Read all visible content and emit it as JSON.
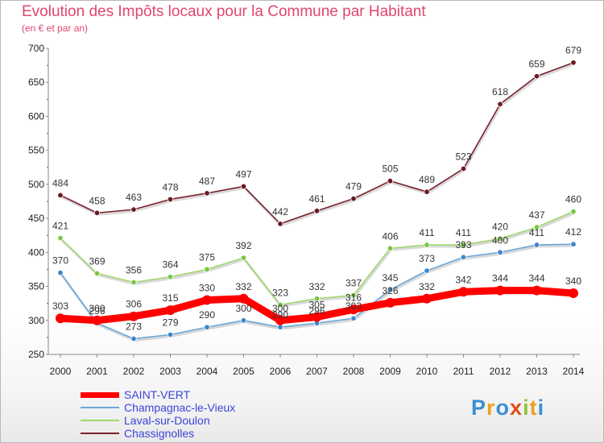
{
  "header": {
    "title": "Evolution des Impôts locaux pour la Commune par Habitant",
    "subtitle": "(en € et par an)"
  },
  "chart_data": {
    "type": "line",
    "title": "Evolution des Impôts locaux pour la Commune par Habitant",
    "subtitle": "(en € et par an)",
    "xlabel": "",
    "ylabel": "",
    "ylim": [
      250,
      700
    ],
    "yticks": [
      "250",
      "300",
      "350",
      "400",
      "450",
      "500",
      "550",
      "600",
      "650",
      "700"
    ],
    "categories": [
      "2000",
      "2001",
      "2002",
      "2003",
      "2004",
      "2005",
      "2006",
      "2007",
      "2008",
      "2009",
      "2010",
      "2011",
      "2012",
      "2013",
      "2014"
    ],
    "grid": false,
    "legend_position": "bottom-left",
    "series": [
      {
        "name": "Chassignolles",
        "color": "#7a1f2b",
        "marker_color": "#6b1a24",
        "values": [
          484,
          458,
          463,
          478,
          487,
          497,
          442,
          461,
          479,
          505,
          489,
          523,
          618,
          659,
          679
        ],
        "labels": [
          "484",
          "458",
          "463",
          "478",
          "487",
          "497",
          "442",
          "461",
          "479",
          "505",
          "489",
          "523",
          "618",
          "659",
          "679"
        ]
      },
      {
        "name": "Laval-sur-Doulon",
        "color": "#9fd86c",
        "marker_color": "#79c741",
        "values": [
          421,
          369,
          356,
          364,
          375,
          392,
          323,
          332,
          337,
          406,
          411,
          411,
          420,
          437,
          460
        ],
        "labels": [
          "421",
          "369",
          "356",
          "364",
          "375",
          "392",
          "323",
          "332",
          "337",
          "406",
          "411",
          "411",
          "420",
          "437",
          "460"
        ]
      },
      {
        "name": "Champagnac-le-Vieux",
        "color": "#6aa6d8",
        "marker_color": "#3e86c6",
        "values": [
          370,
          296,
          273,
          279,
          290,
          300,
          290,
          296,
          303,
          345,
          373,
          393,
          400,
          411,
          412
        ],
        "labels": [
          "370",
          "296",
          "273",
          "279",
          "290",
          "300",
          "290",
          "296",
          "303",
          "345",
          "373",
          "393",
          "400",
          "411",
          "412"
        ]
      },
      {
        "name": "SAINT-VERT",
        "color": "#ff0000",
        "marker_color": "#ff0000",
        "values": [
          303,
          300,
          306,
          315,
          330,
          332,
          300,
          305,
          316,
          326,
          332,
          342,
          344,
          344,
          340
        ],
        "labels": [
          "303",
          "300",
          "306",
          "315",
          "330",
          "332",
          "300",
          "305",
          "316",
          "326",
          "332",
          "342",
          "344",
          "344",
          "340"
        ]
      }
    ]
  },
  "legend": {
    "items": [
      {
        "label": "SAINT-VERT",
        "color": "#ff0000",
        "text_color": "#3c45d8"
      },
      {
        "label": "Champagnac-le-Vieux",
        "color": "#6aa6d8",
        "text_color": "#3c45d8"
      },
      {
        "label": "Laval-sur-Doulon",
        "color": "#9fd86c",
        "text_color": "#3c45d8"
      },
      {
        "label": "Chassignolles",
        "color": "#7a1f2b",
        "text_color": "#3c45d8"
      }
    ]
  },
  "logo": {
    "letters": [
      "P",
      "r",
      "o",
      "x",
      "i",
      "t",
      "i"
    ],
    "colors": [
      "#3a8fd1",
      "#f0a020",
      "#3a8fd1",
      "#e04c1c",
      "#8cc63f",
      "#f0a020",
      "#3a8fd1"
    ]
  }
}
